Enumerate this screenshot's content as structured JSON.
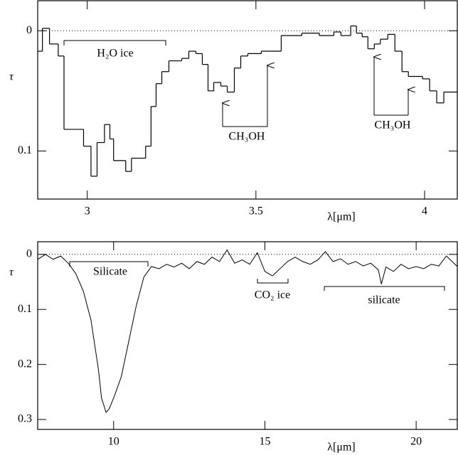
{
  "chart_data": [
    {
      "type": "histogram",
      "xlabel": "λ[μm]",
      "ylabel": "τ",
      "bins": [
        2.853,
        2.867,
        2.888,
        2.914,
        2.931,
        2.989,
        3.011,
        3.029,
        3.051,
        3.067,
        3.078,
        3.114,
        3.131,
        3.147,
        3.173,
        3.189,
        3.204,
        3.221,
        3.242,
        3.28,
        3.301,
        3.322,
        3.341,
        3.358,
        3.375,
        3.396,
        3.415,
        3.436,
        3.455,
        3.476,
        3.516,
        3.575,
        3.636,
        3.688,
        3.731,
        3.752,
        3.781,
        3.798,
        3.815,
        3.832,
        3.851,
        3.869,
        3.891,
        3.912,
        3.933,
        3.952,
        3.994,
        4.015,
        4.036,
        4.057,
        4.097
      ],
      "values": [
        0.017,
        -0.002,
        0.011,
        0.021,
        0.082,
        0.096,
        0.121,
        0.093,
        0.078,
        0.09,
        0.108,
        0.117,
        0.106,
        0.106,
        0.096,
        0.063,
        0.044,
        0.034,
        0.025,
        0.023,
        0.017,
        0.019,
        0.028,
        0.05,
        0.043,
        0.046,
        0.051,
        0.031,
        0.021,
        0.019,
        0.017,
        0.004,
        0.002,
        0.004,
        0.001,
        0.004,
        -0.004,
        0.002,
        0.005,
        0.015,
        0.011,
        0.007,
        0.003,
        0.017,
        0.034,
        0.038,
        0.04,
        0.05,
        0.06,
        0.051
      ],
      "color": "#000000",
      "xlim": [
        2.853,
        4.097
      ],
      "xticks": [
        3,
        3.5,
        4
      ],
      "ylim": [
        0.14,
        -0.025
      ],
      "yticks": [
        0,
        0.1
      ],
      "reference_line": 0,
      "annotations": [
        {
          "text": "H₂O ice"
        },
        {
          "text": "CH₃OH"
        },
        {
          "text": "CH₃OH"
        }
      ]
    },
    {
      "type": "line",
      "xlabel": "λ[μm]",
      "ylabel": "τ",
      "x": [
        7.49,
        7.75,
        8,
        8.25,
        8.5,
        8.75,
        9,
        9.25,
        9.5,
        9.6,
        9.75,
        9.85,
        10,
        10.25,
        10.5,
        10.75,
        11,
        11.25,
        11.5,
        11.75,
        12,
        12.25,
        12.5,
        12.75,
        13,
        13.25,
        13.5,
        13.75,
        14,
        14.25,
        14.5,
        14.75,
        15,
        15.25,
        15.5,
        15.75,
        16,
        16.25,
        16.5,
        16.75,
        17,
        17.25,
        17.5,
        17.75,
        18,
        18.25,
        18.5,
        18.75,
        18.85,
        19,
        19.25,
        19.5,
        19.75,
        20,
        20.25,
        20.5,
        20.75,
        21,
        21.36
      ],
      "values": [
        0.009,
        0,
        0.009,
        0.003,
        0.016,
        0.035,
        0.067,
        0.119,
        0.21,
        0.261,
        0.287,
        0.281,
        0.261,
        0.223,
        0.158,
        0.093,
        0.041,
        0.022,
        0.026,
        0.018,
        0.023,
        0.016,
        0.026,
        0.013,
        0.018,
        0.005,
        0.013,
        -0.008,
        0.016,
        0.01,
        0.018,
        -0.003,
        0.031,
        0.039,
        0.026,
        0.013,
        0.005,
        0.013,
        0.018,
        0.01,
        -0.005,
        0.013,
        0.008,
        0.018,
        0.013,
        0.021,
        0.016,
        0.028,
        0.054,
        0.023,
        0.031,
        0.018,
        0.026,
        0.022,
        0.026,
        0.018,
        0.021,
        0.003,
        0.022
      ],
      "color": "#000000",
      "xlim": [
        7.49,
        21.36
      ],
      "xticks": [
        10,
        15,
        20
      ],
      "ylim": [
        0.318,
        -0.023
      ],
      "yticks": [
        0,
        0.1,
        0.2,
        0.3
      ],
      "reference_line": 0,
      "annotations": [
        {
          "text": "Silicate"
        },
        {
          "text": "CO₂ ice"
        },
        {
          "text": "silicate"
        }
      ]
    }
  ]
}
